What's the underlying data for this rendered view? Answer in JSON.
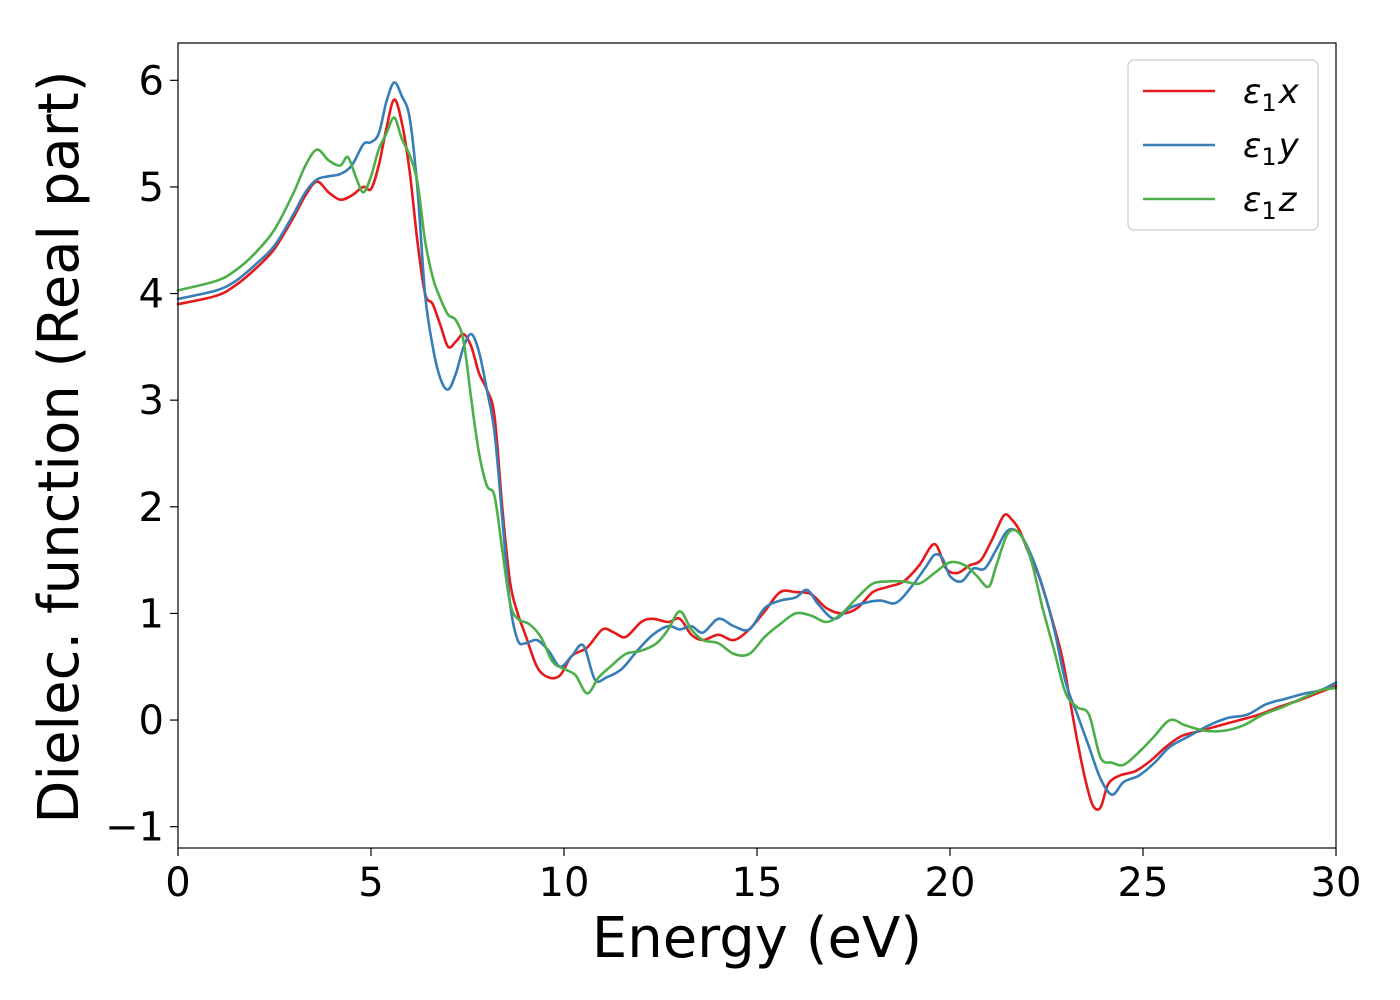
{
  "chart_data": {
    "type": "line",
    "xlabel": "Energy (eV)",
    "ylabel": "Dielec. function (Real part)",
    "xlim": [
      0,
      30
    ],
    "ylim": [
      -1.2,
      6.35
    ],
    "xticks": [
      0,
      5,
      10,
      15,
      20,
      25,
      30
    ],
    "yticks": [
      -1,
      0,
      1,
      2,
      3,
      4,
      5,
      6
    ],
    "xtick_labels": [
      "0",
      "5",
      "10",
      "15",
      "20",
      "25",
      "30"
    ],
    "ytick_labels": [
      "−1",
      "0",
      "1",
      "2",
      "3",
      "4",
      "5",
      "6"
    ],
    "grid": false,
    "legend_position": "top-right",
    "series": [
      {
        "name": "ε₁x",
        "legend_main": "ε",
        "legend_sub": "1",
        "legend_var": "x",
        "color": "#e41a1c",
        "x": [
          0,
          1,
          1.5,
          2,
          2.5,
          3,
          3.3,
          3.6,
          3.9,
          4.2,
          4.5,
          4.8,
          5.0,
          5.2,
          5.4,
          5.6,
          5.8,
          6.0,
          6.2,
          6.4,
          6.6,
          6.8,
          7.0,
          7.2,
          7.4,
          7.6,
          7.8,
          8.0,
          8.2,
          8.4,
          8.6,
          8.8,
          9.0,
          9.3,
          9.6,
          9.9,
          10.2,
          10.6,
          11.0,
          11.3,
          11.6,
          12.0,
          12.3,
          12.7,
          13.0,
          13.3,
          13.6,
          14.0,
          14.4,
          14.8,
          15.2,
          15.6,
          16.0,
          16.4,
          16.8,
          17.2,
          17.6,
          18.0,
          18.4,
          18.8,
          19.2,
          19.6,
          19.9,
          20.2,
          20.5,
          20.8,
          21.1,
          21.4,
          21.6,
          21.8,
          22.0,
          22.3,
          22.6,
          22.9,
          23.1,
          23.3,
          23.5,
          23.7,
          23.9,
          24.1,
          24.4,
          24.8,
          25.2,
          25.6,
          26.0,
          26.5,
          27.0,
          27.5,
          28.0,
          28.5,
          29.0,
          29.5,
          30.0
        ],
        "y": [
          3.9,
          3.98,
          4.08,
          4.23,
          4.42,
          4.72,
          4.92,
          5.05,
          4.95,
          4.88,
          4.92,
          5.0,
          4.98,
          5.2,
          5.55,
          5.82,
          5.6,
          5.15,
          4.5,
          4.0,
          3.9,
          3.7,
          3.5,
          3.55,
          3.62,
          3.5,
          3.25,
          3.1,
          2.85,
          2.0,
          1.3,
          1.0,
          0.8,
          0.5,
          0.4,
          0.42,
          0.6,
          0.68,
          0.85,
          0.82,
          0.78,
          0.92,
          0.95,
          0.92,
          0.95,
          0.8,
          0.75,
          0.8,
          0.75,
          0.85,
          1.02,
          1.2,
          1.2,
          1.18,
          1.05,
          1.0,
          1.05,
          1.2,
          1.25,
          1.3,
          1.45,
          1.65,
          1.42,
          1.38,
          1.45,
          1.5,
          1.7,
          1.92,
          1.88,
          1.78,
          1.6,
          1.35,
          1.0,
          0.6,
          0.2,
          -0.2,
          -0.55,
          -0.8,
          -0.82,
          -0.6,
          -0.52,
          -0.48,
          -0.38,
          -0.25,
          -0.15,
          -0.1,
          -0.05,
          0.0,
          0.05,
          0.12,
          0.18,
          0.25,
          0.32
        ]
      },
      {
        "name": "ε₁y",
        "legend_main": "ε",
        "legend_sub": "1",
        "legend_var": "y",
        "color": "#377eb8",
        "x": [
          0,
          1,
          1.5,
          2,
          2.5,
          3,
          3.3,
          3.6,
          3.9,
          4.2,
          4.5,
          4.8,
          5.0,
          5.2,
          5.4,
          5.6,
          5.8,
          6.0,
          6.2,
          6.4,
          6.6,
          6.8,
          7.0,
          7.2,
          7.4,
          7.6,
          7.8,
          8.0,
          8.2,
          8.4,
          8.6,
          8.8,
          9.0,
          9.3,
          9.6,
          9.9,
          10.2,
          10.5,
          10.8,
          11.1,
          11.5,
          11.9,
          12.3,
          12.7,
          13.0,
          13.3,
          13.6,
          14.0,
          14.4,
          14.8,
          15.2,
          15.6,
          16.0,
          16.3,
          16.6,
          17.0,
          17.4,
          17.8,
          18.2,
          18.6,
          19.0,
          19.4,
          19.6,
          19.8,
          20.0,
          20.3,
          20.6,
          20.9,
          21.2,
          21.5,
          21.8,
          22.1,
          22.4,
          22.7,
          23.0,
          23.3,
          23.6,
          23.9,
          24.2,
          24.5,
          24.9,
          25.3,
          25.7,
          26.2,
          26.7,
          27.2,
          27.7,
          28.2,
          28.7,
          29.2,
          29.6,
          30.0
        ],
        "y": [
          3.95,
          4.03,
          4.12,
          4.27,
          4.45,
          4.75,
          4.95,
          5.07,
          5.1,
          5.12,
          5.2,
          5.4,
          5.42,
          5.5,
          5.8,
          5.98,
          5.85,
          5.65,
          5.0,
          4.0,
          3.5,
          3.2,
          3.1,
          3.25,
          3.5,
          3.62,
          3.45,
          3.1,
          2.7,
          1.9,
          1.1,
          0.75,
          0.72,
          0.75,
          0.65,
          0.5,
          0.6,
          0.7,
          0.38,
          0.4,
          0.48,
          0.65,
          0.8,
          0.88,
          0.85,
          0.88,
          0.82,
          0.95,
          0.88,
          0.85,
          1.05,
          1.12,
          1.15,
          1.22,
          1.08,
          0.95,
          1.05,
          1.1,
          1.12,
          1.1,
          1.25,
          1.45,
          1.55,
          1.52,
          1.35,
          1.3,
          1.42,
          1.42,
          1.6,
          1.78,
          1.75,
          1.55,
          1.25,
          0.85,
          0.35,
          0.05,
          -0.25,
          -0.55,
          -0.7,
          -0.58,
          -0.52,
          -0.4,
          -0.25,
          -0.15,
          -0.05,
          0.02,
          0.05,
          0.15,
          0.2,
          0.25,
          0.28,
          0.35
        ]
      },
      {
        "name": "ε₁z",
        "legend_main": "ε",
        "legend_sub": "1",
        "legend_var": "z",
        "color": "#4daf4a",
        "x": [
          0,
          1,
          1.5,
          2,
          2.5,
          3,
          3.3,
          3.6,
          3.9,
          4.2,
          4.4,
          4.6,
          4.8,
          5.0,
          5.2,
          5.4,
          5.6,
          5.8,
          6.0,
          6.2,
          6.4,
          6.6,
          6.8,
          7.0,
          7.2,
          7.4,
          7.6,
          7.8,
          8.0,
          8.2,
          8.4,
          8.6,
          8.8,
          9.1,
          9.4,
          9.7,
          10.0,
          10.3,
          10.6,
          10.9,
          11.2,
          11.6,
          12.0,
          12.4,
          12.7,
          13.0,
          13.3,
          13.6,
          14.0,
          14.4,
          14.8,
          15.2,
          15.6,
          16.0,
          16.4,
          16.8,
          17.2,
          17.6,
          18.0,
          18.4,
          18.8,
          19.2,
          19.6,
          20.0,
          20.4,
          20.7,
          21.0,
          21.2,
          21.5,
          21.8,
          22.1,
          22.4,
          22.7,
          23.0,
          23.3,
          23.6,
          23.9,
          24.2,
          24.5,
          24.9,
          25.3,
          25.7,
          26.1,
          26.6,
          27.1,
          27.6,
          28.1,
          28.6,
          29.1,
          29.6,
          30.0
        ],
        "y": [
          4.03,
          4.12,
          4.22,
          4.38,
          4.6,
          4.95,
          5.2,
          5.35,
          5.25,
          5.2,
          5.28,
          5.1,
          4.95,
          5.1,
          5.35,
          5.5,
          5.65,
          5.45,
          5.3,
          5.05,
          4.5,
          4.15,
          3.95,
          3.8,
          3.75,
          3.55,
          3.0,
          2.5,
          2.2,
          2.1,
          1.6,
          1.1,
          0.95,
          0.9,
          0.78,
          0.55,
          0.48,
          0.42,
          0.25,
          0.4,
          0.5,
          0.62,
          0.65,
          0.72,
          0.85,
          1.02,
          0.85,
          0.75,
          0.72,
          0.62,
          0.62,
          0.78,
          0.9,
          1.0,
          0.98,
          0.92,
          1.0,
          1.15,
          1.28,
          1.3,
          1.3,
          1.28,
          1.38,
          1.48,
          1.45,
          1.35,
          1.25,
          1.45,
          1.75,
          1.75,
          1.5,
          1.05,
          0.65,
          0.25,
          0.12,
          0.05,
          -0.35,
          -0.4,
          -0.42,
          -0.3,
          -0.15,
          0.0,
          -0.05,
          -0.1,
          -0.1,
          -0.05,
          0.05,
          0.12,
          0.2,
          0.28,
          0.3
        ]
      }
    ]
  }
}
